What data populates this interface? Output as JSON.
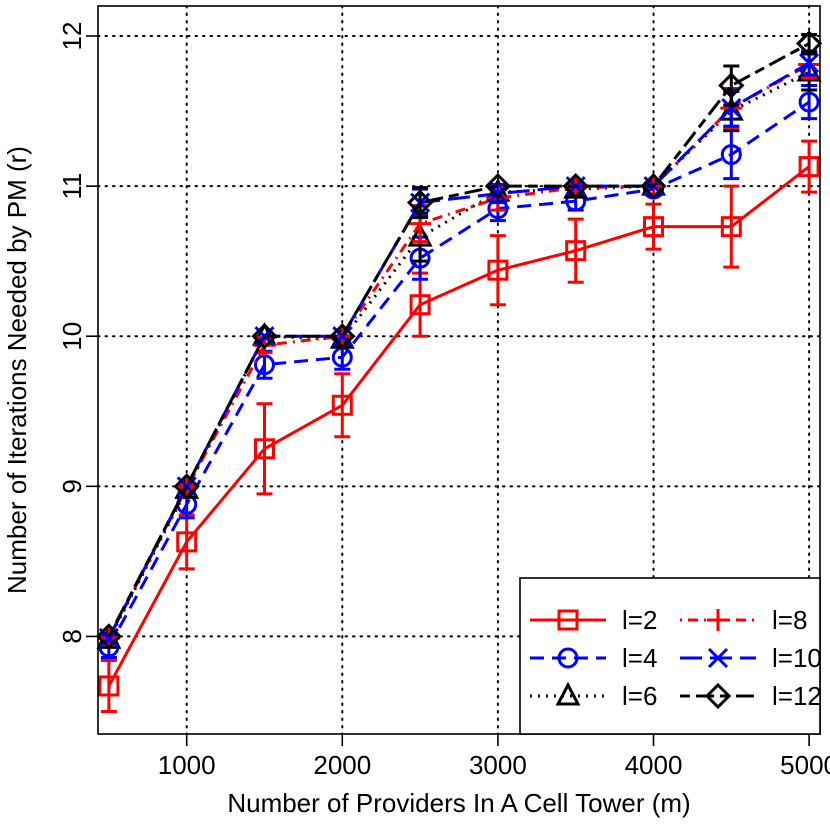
{
  "chart_data": {
    "type": "line",
    "xlabel": "Number of Providers In A Cell Tower (m)",
    "ylabel": "Number of Iterations Needed by PM (r)",
    "xlim": [
      430,
      5070
    ],
    "ylim": [
      7.35,
      12.2
    ],
    "x_ticks": [
      1000,
      2000,
      3000,
      4000,
      5000
    ],
    "y_ticks": [
      8,
      9,
      10,
      11,
      12
    ],
    "grid": true,
    "legend_position": "bottom-right",
    "x": [
      500,
      1000,
      1500,
      2000,
      2500,
      3000,
      3500,
      4000,
      4500,
      5000
    ],
    "series": [
      {
        "name": "l=2",
        "color": "#ff0000",
        "dash": "solid",
        "marker": "square",
        "values": [
          7.67,
          8.63,
          9.25,
          9.54,
          10.21,
          10.44,
          10.57,
          10.73,
          10.73,
          11.13
        ],
        "err": [
          0.17,
          0.18,
          0.3,
          0.21,
          0.21,
          0.23,
          0.21,
          0.15,
          0.27,
          0.17
        ]
      },
      {
        "name": "l=4",
        "color": "#0000ff",
        "dash": "dashed",
        "marker": "circle",
        "values": [
          7.93,
          8.88,
          9.81,
          9.86,
          10.52,
          10.85,
          10.9,
          10.98,
          11.21,
          11.56
        ],
        "err": [
          0.07,
          0.09,
          0.09,
          0.08,
          0.14,
          0.08,
          0.06,
          0.04,
          0.16,
          0.11
        ]
      },
      {
        "name": "l=6",
        "color": "#000000",
        "dash": "dotted",
        "marker": "triangle",
        "values": [
          7.98,
          8.98,
          10.0,
          9.98,
          10.66,
          10.96,
          10.98,
          11.0,
          11.5,
          11.76
        ],
        "err": [
          0.03,
          0.03,
          0.0,
          0.02,
          0.16,
          0.05,
          0.04,
          0.0,
          0.13,
          0.12
        ]
      },
      {
        "name": "l=8",
        "color": "#ff0000",
        "dash": "dotdash",
        "marker": "plus",
        "values": [
          7.99,
          8.99,
          9.94,
          10.0,
          10.75,
          10.92,
          10.99,
          11.0,
          11.52,
          11.81
        ],
        "err": [
          0.02,
          0.02,
          0.05,
          0.0,
          0.12,
          0.08,
          0.02,
          0.0,
          0.13,
          0.09
        ]
      },
      {
        "name": "l=10",
        "color": "#0000ff",
        "dash": "longdash",
        "marker": "x",
        "values": [
          7.99,
          9.0,
          10.0,
          10.0,
          10.89,
          10.95,
          11.0,
          11.0,
          11.52,
          11.82
        ],
        "err": [
          0.02,
          0.0,
          0.0,
          0.0,
          0.09,
          0.06,
          0.0,
          0.0,
          0.12,
          0.08
        ]
      },
      {
        "name": "l=12",
        "color": "#000000",
        "dash": "twodash",
        "marker": "diamond",
        "values": [
          8.0,
          9.0,
          10.0,
          10.0,
          10.89,
          11.0,
          11.0,
          11.0,
          11.67,
          11.95
        ],
        "err": [
          0.0,
          0.0,
          0.0,
          0.0,
          0.1,
          0.0,
          0.0,
          0.0,
          0.13,
          0.06
        ]
      }
    ]
  }
}
